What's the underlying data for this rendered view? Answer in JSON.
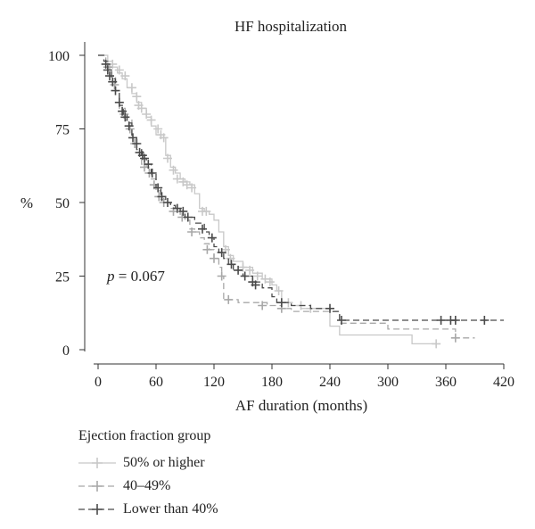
{
  "chart_data": {
    "type": "line",
    "title": "HF hospitalization",
    "xlabel": "AF duration (months)",
    "ylabel": "%",
    "xlim": [
      0,
      420
    ],
    "ylim": [
      0,
      100
    ],
    "xticks": [
      0,
      60,
      120,
      180,
      240,
      300,
      360,
      420
    ],
    "yticks": [
      0,
      25,
      50,
      75,
      100
    ],
    "annotation": {
      "label": "p",
      "text": " = 0.067"
    },
    "legend": {
      "title": "Ejection fraction group",
      "position": "bottom-left"
    },
    "series": [
      {
        "name": "50% or higher",
        "color": "#c8c8c8",
        "dash": "solid",
        "steps": [
          [
            0,
            100
          ],
          [
            10,
            98
          ],
          [
            15,
            96
          ],
          [
            20,
            94
          ],
          [
            25,
            92
          ],
          [
            30,
            89
          ],
          [
            35,
            87
          ],
          [
            40,
            84
          ],
          [
            45,
            82
          ],
          [
            50,
            79
          ],
          [
            55,
            76
          ],
          [
            60,
            73
          ],
          [
            65,
            72
          ],
          [
            70,
            66
          ],
          [
            75,
            62
          ],
          [
            80,
            60
          ],
          [
            85,
            58
          ],
          [
            90,
            57
          ],
          [
            95,
            56
          ],
          [
            100,
            53
          ],
          [
            105,
            48
          ],
          [
            110,
            47
          ],
          [
            115,
            46
          ],
          [
            120,
            44
          ],
          [
            125,
            40
          ],
          [
            130,
            35
          ],
          [
            135,
            32
          ],
          [
            140,
            30
          ],
          [
            150,
            28
          ],
          [
            160,
            26
          ],
          [
            170,
            24
          ],
          [
            180,
            22
          ],
          [
            185,
            20
          ],
          [
            190,
            16
          ],
          [
            200,
            15
          ],
          [
            210,
            14
          ],
          [
            220,
            14
          ],
          [
            240,
            8
          ],
          [
            250,
            5
          ],
          [
            320,
            5
          ],
          [
            325,
            2
          ],
          [
            350,
            2
          ]
        ],
        "censor": [
          [
            15,
            97
          ],
          [
            22,
            95
          ],
          [
            28,
            93
          ],
          [
            35,
            89
          ],
          [
            40,
            86
          ],
          [
            42,
            83
          ],
          [
            45,
            82
          ],
          [
            50,
            80
          ],
          [
            55,
            78
          ],
          [
            62,
            75
          ],
          [
            65,
            73
          ],
          [
            68,
            72
          ],
          [
            72,
            65
          ],
          [
            78,
            61
          ],
          [
            82,
            58
          ],
          [
            88,
            57
          ],
          [
            92,
            56
          ],
          [
            97,
            55
          ],
          [
            108,
            47
          ],
          [
            112,
            47
          ],
          [
            132,
            34
          ],
          [
            137,
            31
          ],
          [
            150,
            28
          ],
          [
            157,
            27
          ],
          [
            165,
            25
          ],
          [
            173,
            24
          ],
          [
            178,
            23
          ],
          [
            187,
            20
          ],
          [
            197,
            16
          ],
          [
            210,
            15
          ],
          [
            220,
            14
          ],
          [
            350,
            2
          ]
        ]
      },
      {
        "name": "40–49%",
        "color": "#a8a8a8",
        "dash": "dashed",
        "steps": [
          [
            0,
            100
          ],
          [
            8,
            97
          ],
          [
            12,
            93
          ],
          [
            18,
            88
          ],
          [
            22,
            82
          ],
          [
            28,
            78
          ],
          [
            35,
            72
          ],
          [
            40,
            68
          ],
          [
            45,
            63
          ],
          [
            50,
            62
          ],
          [
            55,
            58
          ],
          [
            60,
            54
          ],
          [
            65,
            51
          ],
          [
            70,
            50
          ],
          [
            75,
            48
          ],
          [
            85,
            46
          ],
          [
            90,
            44
          ],
          [
            95,
            41
          ],
          [
            100,
            40
          ],
          [
            105,
            38
          ],
          [
            110,
            36
          ],
          [
            115,
            34
          ],
          [
            120,
            31
          ],
          [
            125,
            28
          ],
          [
            128,
            25
          ],
          [
            130,
            17
          ],
          [
            145,
            16
          ],
          [
            175,
            15
          ],
          [
            190,
            14
          ],
          [
            200,
            13
          ],
          [
            220,
            13
          ],
          [
            250,
            9
          ],
          [
            300,
            7
          ],
          [
            370,
            4
          ],
          [
            390,
            4
          ]
        ],
        "censor": [
          [
            10,
            96
          ],
          [
            17,
            90
          ],
          [
            27,
            80
          ],
          [
            33,
            75
          ],
          [
            38,
            70
          ],
          [
            48,
            62
          ],
          [
            53,
            60
          ],
          [
            58,
            56
          ],
          [
            63,
            52
          ],
          [
            68,
            50
          ],
          [
            78,
            47
          ],
          [
            87,
            45
          ],
          [
            97,
            40
          ],
          [
            113,
            34
          ],
          [
            120,
            31
          ],
          [
            128,
            25
          ],
          [
            135,
            17
          ],
          [
            170,
            15
          ],
          [
            190,
            14
          ],
          [
            370,
            4
          ]
        ]
      },
      {
        "name": "Lower than 40%",
        "color": "#4a4a4a",
        "dash": "dashed",
        "steps": [
          [
            0,
            100
          ],
          [
            6,
            98
          ],
          [
            10,
            95
          ],
          [
            14,
            92
          ],
          [
            18,
            88
          ],
          [
            22,
            83
          ],
          [
            26,
            80
          ],
          [
            30,
            77
          ],
          [
            35,
            72
          ],
          [
            40,
            68
          ],
          [
            45,
            65
          ],
          [
            50,
            63
          ],
          [
            55,
            60
          ],
          [
            60,
            55
          ],
          [
            65,
            52
          ],
          [
            70,
            50
          ],
          [
            75,
            49
          ],
          [
            80,
            48
          ],
          [
            85,
            47
          ],
          [
            90,
            45
          ],
          [
            100,
            43
          ],
          [
            110,
            40
          ],
          [
            115,
            38
          ],
          [
            120,
            35
          ],
          [
            125,
            33
          ],
          [
            130,
            31
          ],
          [
            135,
            29
          ],
          [
            140,
            27
          ],
          [
            150,
            25
          ],
          [
            160,
            23
          ],
          [
            170,
            21
          ],
          [
            180,
            18
          ],
          [
            185,
            16
          ],
          [
            200,
            15
          ],
          [
            220,
            14
          ],
          [
            240,
            13
          ],
          [
            250,
            10
          ],
          [
            420,
            10
          ]
        ],
        "censor": [
          [
            8,
            97
          ],
          [
            10,
            95
          ],
          [
            12,
            93
          ],
          [
            15,
            91
          ],
          [
            18,
            88
          ],
          [
            22,
            84
          ],
          [
            25,
            81
          ],
          [
            28,
            79
          ],
          [
            32,
            76
          ],
          [
            36,
            72
          ],
          [
            40,
            70
          ],
          [
            43,
            67
          ],
          [
            46,
            66
          ],
          [
            48,
            65
          ],
          [
            52,
            63
          ],
          [
            56,
            60
          ],
          [
            62,
            55
          ],
          [
            66,
            52
          ],
          [
            72,
            50
          ],
          [
            82,
            48
          ],
          [
            88,
            47
          ],
          [
            93,
            45
          ],
          [
            108,
            41
          ],
          [
            118,
            38
          ],
          [
            128,
            33
          ],
          [
            138,
            29
          ],
          [
            145,
            27
          ],
          [
            152,
            25
          ],
          [
            160,
            23
          ],
          [
            163,
            22
          ],
          [
            190,
            16
          ],
          [
            240,
            14
          ],
          [
            252,
            10
          ],
          [
            355,
            10
          ],
          [
            365,
            10
          ],
          [
            370,
            10
          ],
          [
            400,
            10
          ]
        ]
      }
    ]
  }
}
